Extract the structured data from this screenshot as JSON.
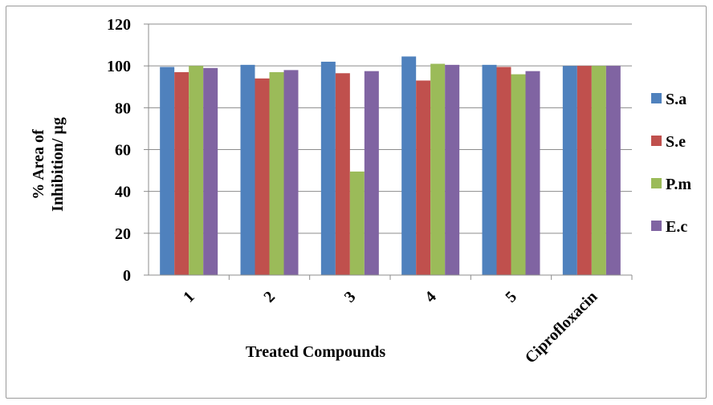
{
  "chart_data": {
    "type": "bar",
    "categories": [
      "1",
      "2",
      "3",
      "4",
      "5",
      "Ciprofloxacin"
    ],
    "series": [
      {
        "name": "S.a",
        "values": [
          99.5,
          100.5,
          102,
          104.5,
          100.5,
          100
        ],
        "color": "#4f81bd"
      },
      {
        "name": "S.e",
        "values": [
          97,
          94,
          96.5,
          93,
          99.5,
          100
        ],
        "color": "#c0504d"
      },
      {
        "name": "P.m",
        "values": [
          100,
          97,
          49.5,
          101,
          96,
          100
        ],
        "color": "#9bbb59"
      },
      {
        "name": "E.c",
        "values": [
          99,
          98,
          97.5,
          100.5,
          97.5,
          100
        ],
        "color": "#8064a2"
      }
    ],
    "xlabel": "Treated Compounds",
    "ylabel": [
      "% Area of",
      "Inhibition/ µg"
    ],
    "ylim": [
      0,
      120
    ],
    "yticks": [
      "0",
      "20",
      "40",
      "60",
      "80",
      "100",
      "120"
    ],
    "grid": true,
    "legend_position": "right"
  }
}
